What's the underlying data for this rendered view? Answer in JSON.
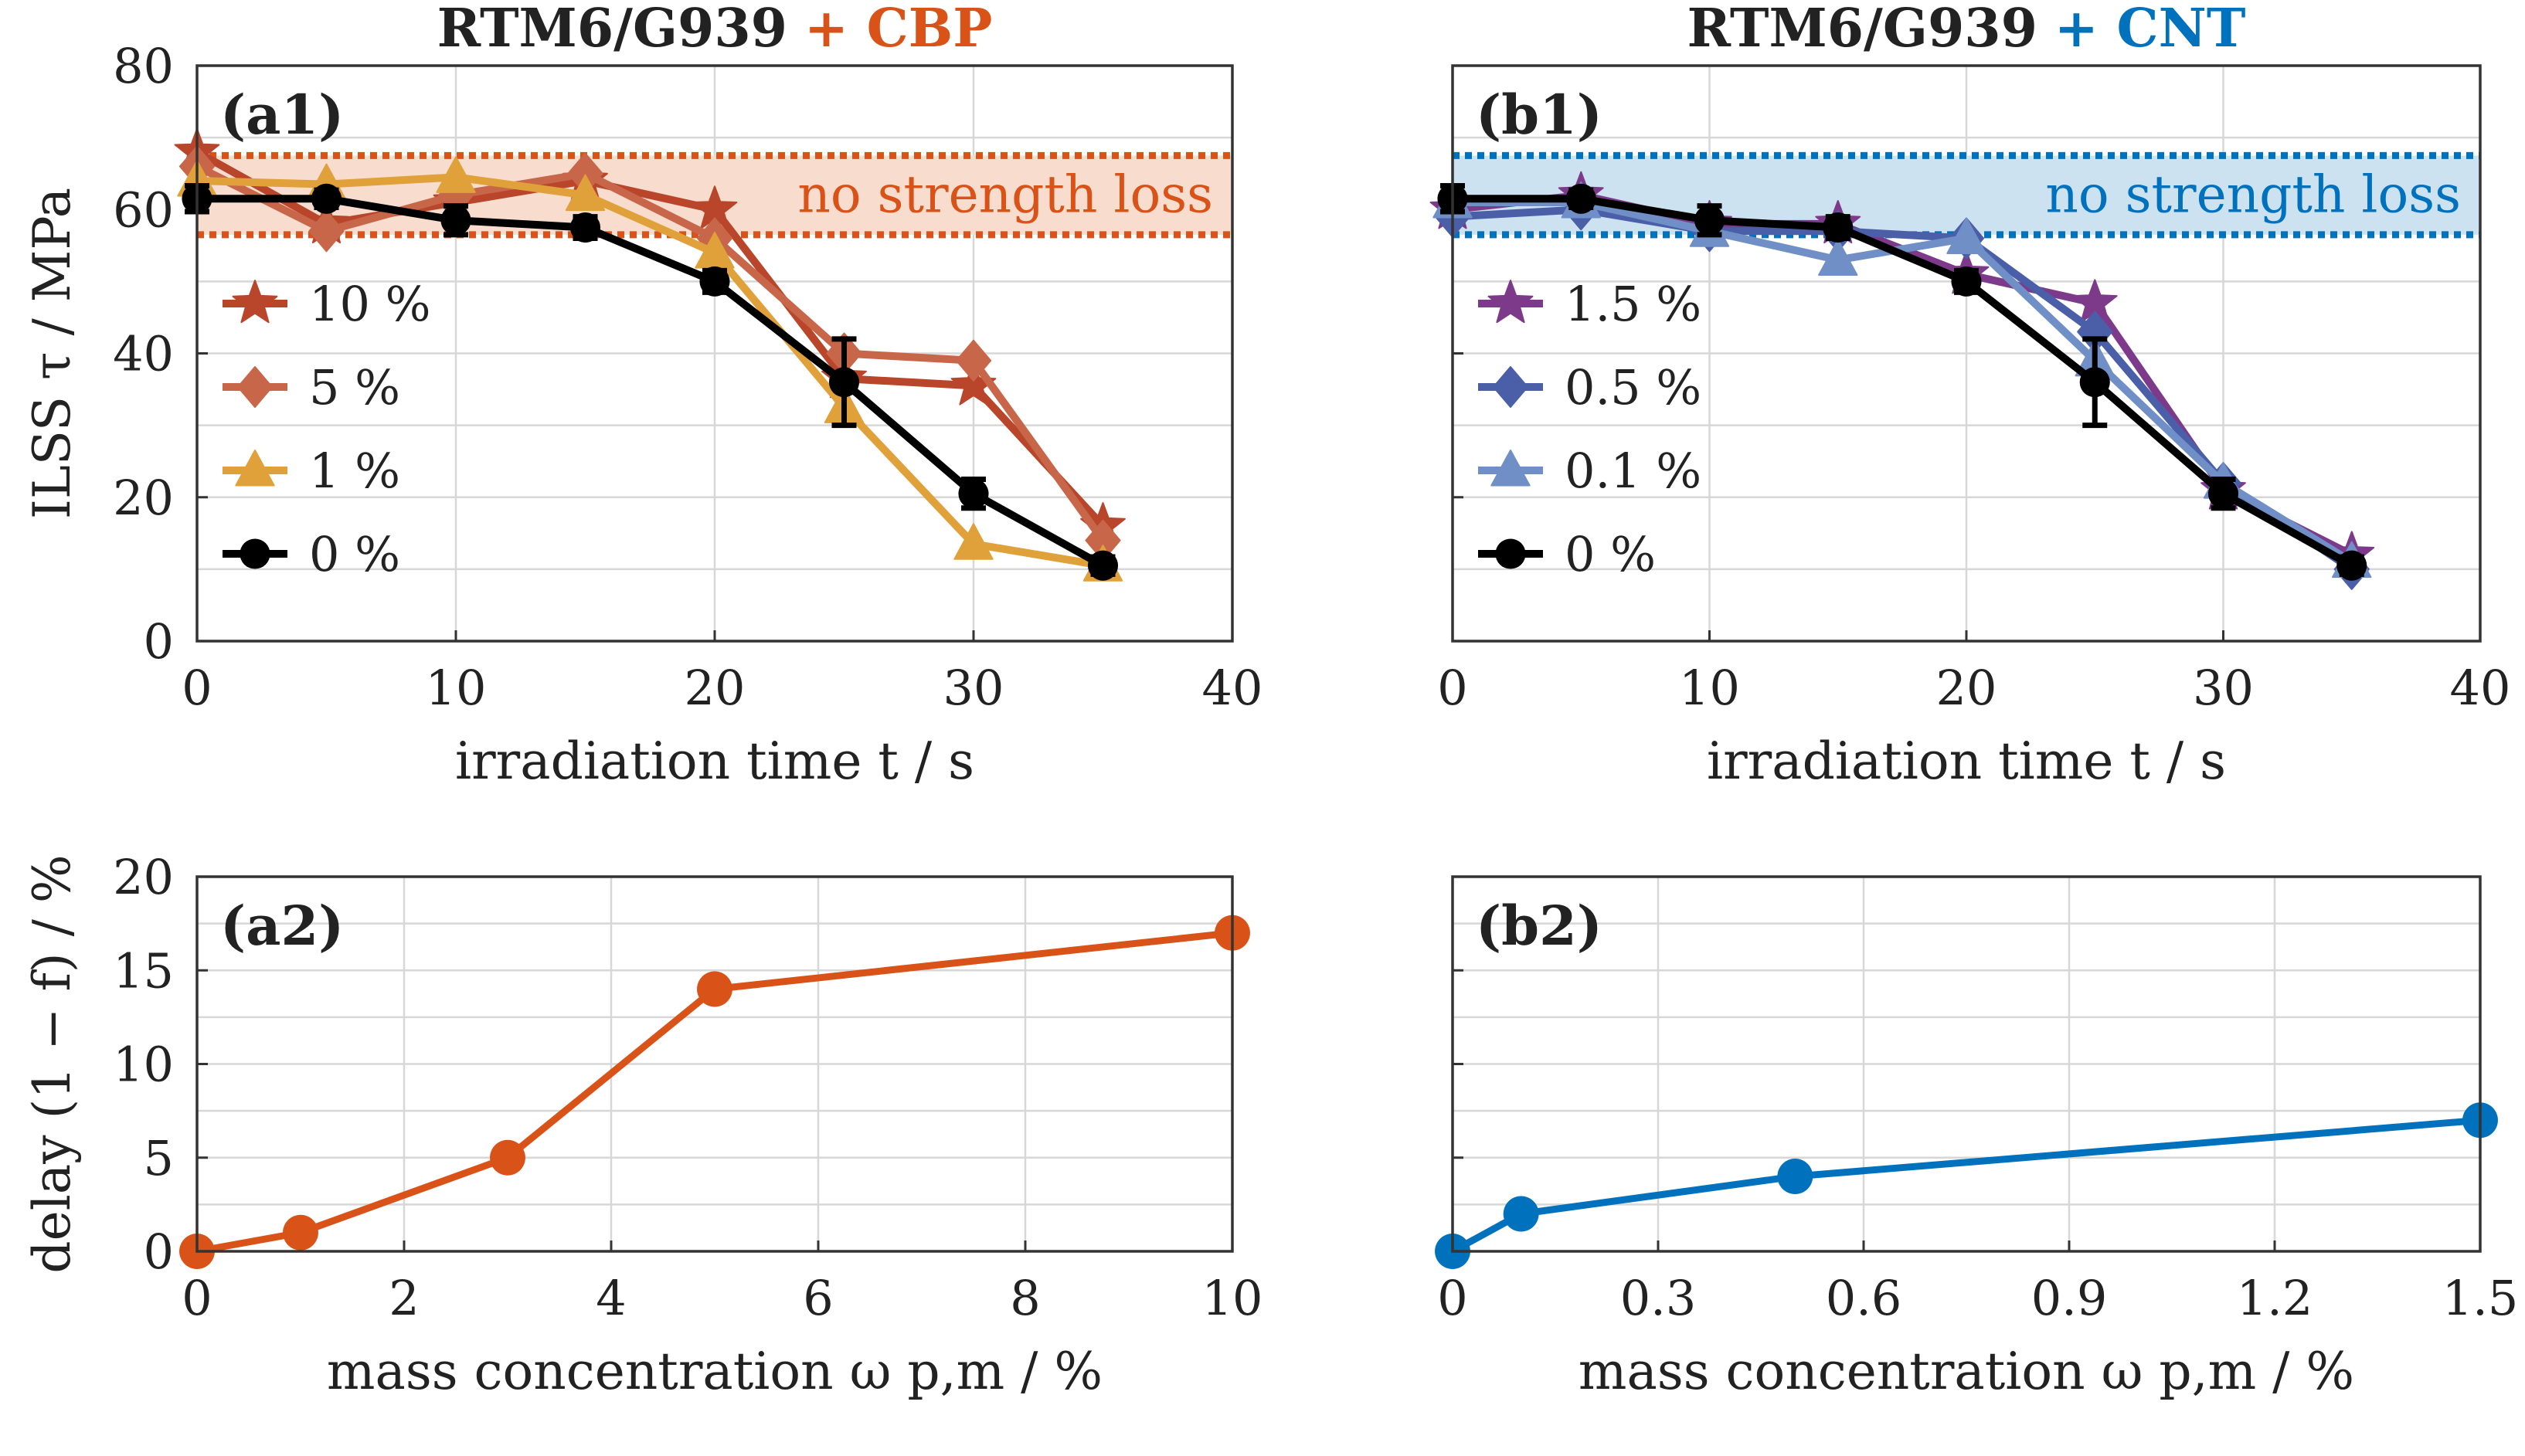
{
  "chart_data": [
    {
      "panel": "(a1)",
      "type": "line",
      "title": {
        "base": "RTM6/G939",
        "plus": "+ CBP",
        "color": "#d95319"
      },
      "xlabel": "irradiation time t / s",
      "ylabel": "ILSS τ / MPa",
      "xlim": [
        0,
        40
      ],
      "ylim": [
        0,
        80
      ],
      "xticks": [
        "0",
        "10",
        "20",
        "30",
        "40"
      ],
      "yticks": [
        "0",
        "20",
        "40",
        "60",
        "80"
      ],
      "band": {
        "label": "no strength loss",
        "range": [
          56.5,
          67.5
        ],
        "color": "#d95319",
        "fill": "#f8dccd"
      },
      "x": [
        0,
        5,
        10,
        15,
        20,
        25,
        30,
        35
      ],
      "series": [
        {
          "name": "10 %",
          "color": "#b9452a",
          "marker": "star",
          "values": [
            68,
            58,
            61,
            64,
            60,
            36.5,
            35.5,
            16
          ]
        },
        {
          "name": "5 %",
          "color": "#c8664a",
          "marker": "diamond",
          "values": [
            66,
            57,
            62,
            65,
            56,
            40,
            39,
            14
          ]
        },
        {
          "name": "1 %",
          "color": "#e0a13a",
          "marker": "triangle",
          "values": [
            64,
            63.5,
            64.5,
            62,
            54,
            32.5,
            13.5,
            10.5
          ]
        },
        {
          "name": "0 %",
          "color": "#000000",
          "marker": "circle",
          "values": [
            61.5,
            61.5,
            58.5,
            57.5,
            50,
            36,
            20.5,
            10.5
          ],
          "err": [
            1.8,
            1.2,
            2,
            1.5,
            1.5,
            6,
            2,
            1.2
          ]
        }
      ]
    },
    {
      "panel": "(b1)",
      "type": "line",
      "title": {
        "base": "RTM6/G939",
        "plus": "+ CNT",
        "color": "#0072bd"
      },
      "xlabel": "irradiation time t / s",
      "ylabel": "",
      "xlim": [
        0,
        40
      ],
      "ylim": [
        0,
        80
      ],
      "xticks": [
        "0",
        "10",
        "20",
        "30",
        "40"
      ],
      "yticks": [],
      "band": {
        "label": "no strength loss",
        "range": [
          56.5,
          67.5
        ],
        "color": "#0072bd",
        "fill": "#cde2f0"
      },
      "x": [
        0,
        5,
        10,
        15,
        20,
        25,
        30,
        35
      ],
      "series": [
        {
          "name": "1.5 %",
          "color": "#7e3a8a",
          "marker": "star",
          "values": [
            60,
            62,
            58,
            58,
            51,
            47,
            21,
            12
          ]
        },
        {
          "name": "0.5 %",
          "color": "#4a5fa8",
          "marker": "diamond",
          "values": [
            59,
            60,
            57,
            57,
            56,
            43,
            22,
            10
          ]
        },
        {
          "name": "0.1 %",
          "color": "#6f8fc6",
          "marker": "triangle",
          "values": [
            61,
            61,
            57,
            53,
            56,
            39,
            22,
            11
          ]
        },
        {
          "name": "0 %",
          "color": "#000000",
          "marker": "circle",
          "values": [
            61.5,
            61.5,
            58.5,
            57.5,
            50,
            36,
            20.5,
            10.5
          ],
          "err": [
            1.8,
            1.2,
            2,
            1.5,
            1.5,
            6,
            2,
            1.2
          ]
        }
      ]
    },
    {
      "panel": "(a2)",
      "type": "line",
      "xlabel": "mass concentration ω p,m / %",
      "ylabel": "delay (1 − f) / %",
      "xlim": [
        0,
        10
      ],
      "ylim": [
        0,
        20
      ],
      "xticks": [
        "0",
        "2",
        "4",
        "6",
        "8",
        "10"
      ],
      "yticks": [
        "0",
        "5",
        "10",
        "15",
        "20"
      ],
      "series": [
        {
          "name": "CBP",
          "color": "#d95319",
          "x": [
            0,
            1,
            3,
            5,
            10
          ],
          "values": [
            0,
            1,
            5,
            14,
            17
          ]
        }
      ]
    },
    {
      "panel": "(b2)",
      "type": "line",
      "xlabel": "mass concentration ω p,m / %",
      "ylabel": "",
      "xlim": [
        0,
        1.5
      ],
      "ylim": [
        0,
        20
      ],
      "xticks": [
        "0",
        "0.3",
        "0.6",
        "0.9",
        "1.2",
        "1.5"
      ],
      "yticks": [],
      "series": [
        {
          "name": "CNT",
          "color": "#0072bd",
          "x": [
            0,
            0.1,
            0.5,
            1.5
          ],
          "values": [
            0,
            2,
            4,
            7
          ]
        }
      ]
    }
  ]
}
